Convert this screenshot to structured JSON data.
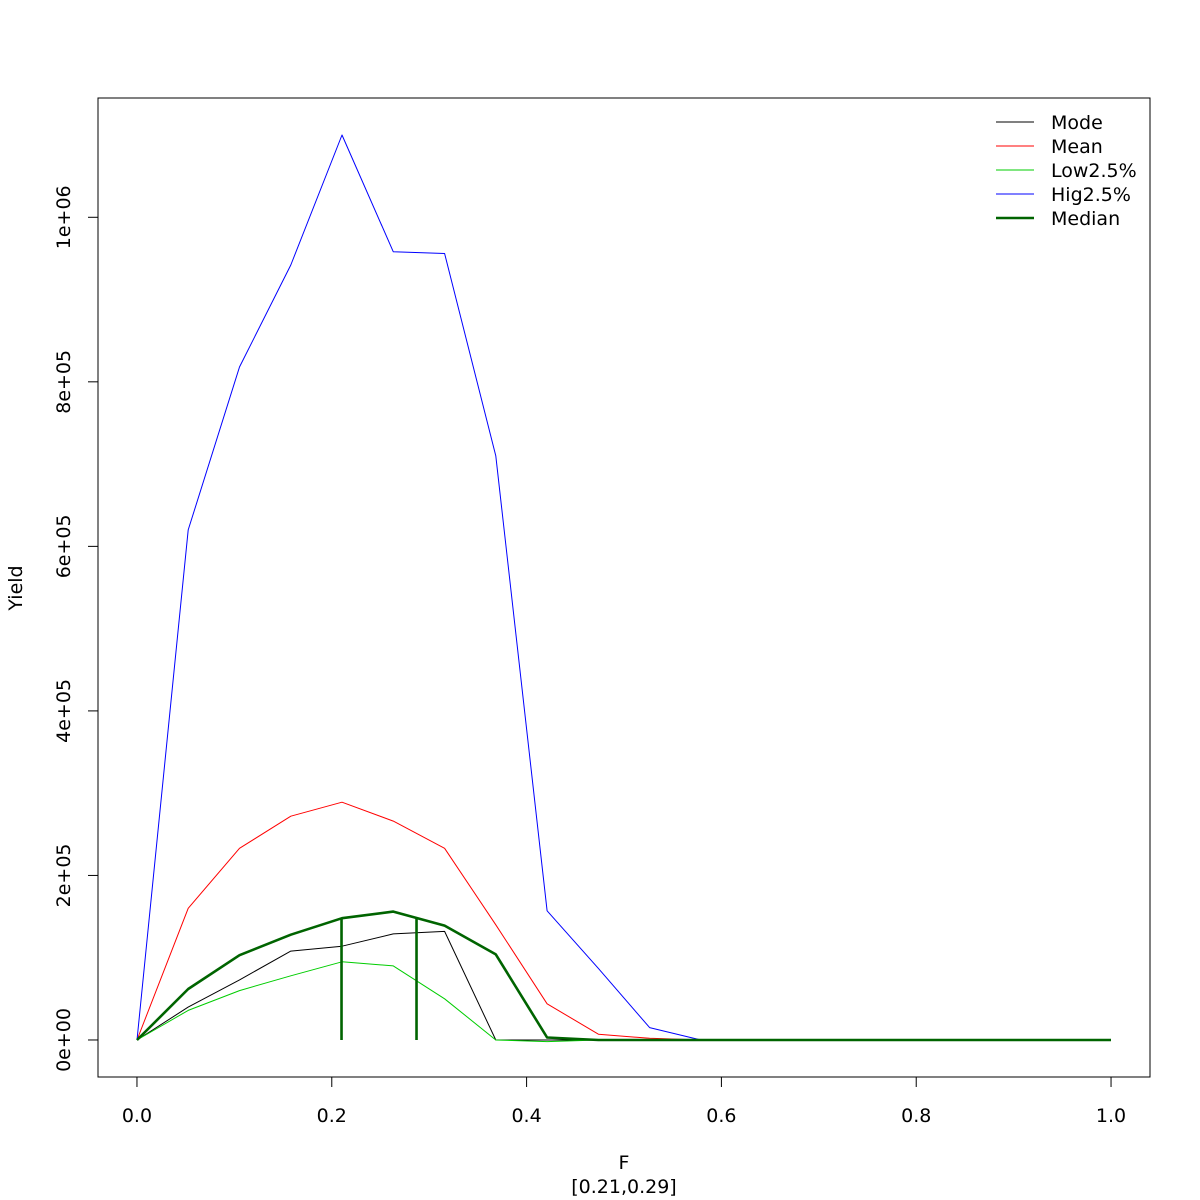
{
  "chart_data": {
    "type": "line",
    "title": "",
    "xlabel": "F",
    "xlabel_sub": "[0.21,0.29]",
    "ylabel": "Yield",
    "xlim": [
      -0.04,
      1.04
    ],
    "ylim": [
      -45000,
      1145000
    ],
    "x_ticks": [
      0.0,
      0.2,
      0.4,
      0.6,
      0.8,
      1.0
    ],
    "x_tick_labels": [
      "0.0",
      "0.2",
      "0.4",
      "0.6",
      "0.8",
      "1.0"
    ],
    "y_ticks": [
      0,
      200000,
      400000,
      600000,
      800000,
      1000000
    ],
    "y_tick_labels": [
      "0e+00",
      "2e+05",
      "4e+05",
      "6e+05",
      "8e+05",
      "1e+06"
    ],
    "grid": false,
    "legend_position": "top-right",
    "x": [
      0.0,
      0.0526,
      0.1053,
      0.1579,
      0.2105,
      0.2632,
      0.3158,
      0.3684,
      0.4211,
      0.4737,
      0.5263,
      0.5789,
      0.6316,
      0.6842,
      0.7368,
      0.7895,
      0.8421,
      0.8947,
      0.9474,
      1.0
    ],
    "series": [
      {
        "name": "Mode",
        "color": "#000000",
        "width": 1,
        "values": [
          0,
          40000,
          73000,
          108000,
          114000,
          129000,
          132000,
          0,
          0,
          0,
          0,
          0,
          0,
          0,
          0,
          0,
          0,
          0,
          0,
          0
        ]
      },
      {
        "name": "Mean",
        "color": "#ff0000",
        "width": 1,
        "values": [
          0,
          160000,
          233000,
          272000,
          289000,
          266000,
          233000,
          140000,
          44000,
          7000,
          2000,
          0,
          0,
          0,
          0,
          0,
          0,
          0,
          0,
          0
        ]
      },
      {
        "name": "Low2.5%",
        "color": "#00cd00",
        "width": 1,
        "values": [
          0,
          36000,
          60000,
          78000,
          95000,
          90000,
          50000,
          0,
          -2000,
          0,
          0,
          0,
          0,
          0,
          0,
          0,
          0,
          0,
          0,
          0
        ]
      },
      {
        "name": "Hig2.5%",
        "color": "#0000ff",
        "width": 1,
        "values": [
          0,
          620000,
          818000,
          942000,
          1100000,
          958000,
          956000,
          710000,
          157000,
          87000,
          15000,
          0,
          0,
          0,
          0,
          0,
          0,
          0,
          0,
          0
        ]
      },
      {
        "name": "Median",
        "color": "#006400",
        "width": 2.6,
        "values": [
          0,
          62000,
          103000,
          128000,
          148000,
          156000,
          139000,
          104000,
          3000,
          0,
          0,
          0,
          0,
          0,
          0,
          0,
          0,
          0,
          0,
          0
        ]
      }
    ],
    "vertical_markers": [
      {
        "x": 0.21,
        "y": 148000,
        "color": "#006400"
      },
      {
        "x": 0.287,
        "y": 148000,
        "color": "#006400"
      }
    ]
  }
}
